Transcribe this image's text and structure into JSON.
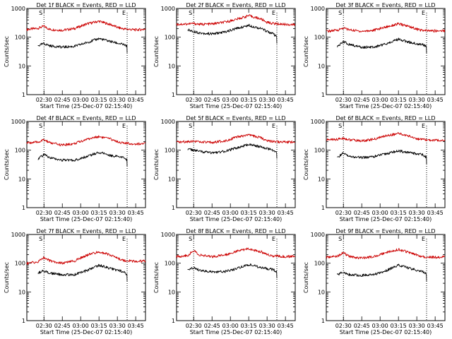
{
  "colors": {
    "events": "#000000",
    "lld": "#cc0000",
    "axis": "#000000",
    "background": "#ffffff"
  },
  "chart_data": [
    {
      "type": "line",
      "title": "Det 1f BLACK = Events, RED = LLD",
      "xlabel": "Start Time (25-Dec-07 02:15:40)",
      "ylabel": "Counts/sec",
      "yscale": "log",
      "ylim": [
        1,
        1000
      ],
      "y_ticks": [
        "1",
        "10",
        "100",
        "1000"
      ],
      "x_ticks": [
        "02:30",
        "02:45",
        "03:00",
        "03:15",
        "03:30",
        "03:45"
      ],
      "xlim": [
        "02:16",
        "03:53"
      ],
      "markers": [
        {
          "label": "S",
          "time": "02:30"
        },
        {
          "label": "E",
          "time": "03:38"
        }
      ],
      "series": [
        {
          "color": "#cc0000",
          "x": [
            "02:16",
            "02:25",
            "02:30",
            "02:35",
            "02:45",
            "02:55",
            "03:05",
            "03:15",
            "03:25",
            "03:30",
            "03:35",
            "03:45",
            "03:53"
          ],
          "y": [
            185,
            205,
            240,
            185,
            175,
            200,
            290,
            360,
            270,
            220,
            195,
            180,
            190
          ]
        },
        {
          "color": "#000000",
          "x": [
            "02:25",
            "02:30",
            "02:35",
            "02:45",
            "02:55",
            "03:05",
            "03:15",
            "03:25",
            "03:35",
            "03:38"
          ],
          "y": [
            50,
            60,
            50,
            45,
            48,
            65,
            90,
            70,
            55,
            48
          ]
        }
      ]
    },
    {
      "type": "line",
      "title": "Det 2f BLACK = Events, RED = LLD",
      "xlabel": "Start Time (25-Dec-07 02:15:40)",
      "ylabel": "Counts/sec",
      "yscale": "log",
      "ylim": [
        1,
        1000
      ],
      "y_ticks": [
        "1",
        "10",
        "100",
        "1000"
      ],
      "x_ticks": [
        "02:30",
        "02:45",
        "03:00",
        "03:15",
        "03:30",
        "03:45"
      ],
      "xlim": [
        "02:16",
        "03:53"
      ],
      "markers": [
        {
          "label": "S",
          "time": "02:30"
        },
        {
          "label": "E",
          "time": "03:38"
        }
      ],
      "series": [
        {
          "color": "#cc0000",
          "x": [
            "02:16",
            "02:25",
            "02:30",
            "02:35",
            "02:45",
            "02:55",
            "03:05",
            "03:15",
            "03:25",
            "03:30",
            "03:35",
            "03:45",
            "03:53"
          ],
          "y": [
            280,
            290,
            300,
            280,
            290,
            330,
            420,
            560,
            430,
            330,
            300,
            280,
            270
          ]
        },
        {
          "color": "#000000",
          "x": [
            "02:25",
            "02:30",
            "02:35",
            "02:45",
            "02:55",
            "03:05",
            "03:15",
            "03:25",
            "03:35",
            "03:38"
          ],
          "y": [
            180,
            160,
            140,
            130,
            150,
            200,
            260,
            200,
            130,
            100
          ]
        }
      ]
    },
    {
      "type": "line",
      "title": "Det 3f BLACK = Events, RED = LLD",
      "xlabel": "Start Time (25-Dec-07 02:15:40)",
      "ylabel": "Counts/sec",
      "yscale": "log",
      "ylim": [
        1,
        1000
      ],
      "y_ticks": [
        "1",
        "10",
        "100",
        "1000"
      ],
      "x_ticks": [
        "02:30",
        "02:45",
        "03:00",
        "03:15",
        "03:30",
        "03:45"
      ],
      "xlim": [
        "02:16",
        "03:53"
      ],
      "markers": [
        {
          "label": "S",
          "time": "02:30"
        },
        {
          "label": "E",
          "time": "03:38"
        }
      ],
      "series": [
        {
          "color": "#cc0000",
          "x": [
            "02:16",
            "02:25",
            "02:30",
            "02:35",
            "02:45",
            "02:55",
            "03:05",
            "03:15",
            "03:25",
            "03:30",
            "03:35",
            "03:45",
            "03:53"
          ],
          "y": [
            160,
            175,
            210,
            180,
            160,
            175,
            230,
            290,
            230,
            190,
            170,
            165,
            170
          ]
        },
        {
          "color": "#000000",
          "x": [
            "02:25",
            "02:30",
            "02:35",
            "02:45",
            "02:55",
            "03:05",
            "03:15",
            "03:25",
            "03:35",
            "03:38"
          ],
          "y": [
            45,
            70,
            55,
            45,
            45,
            60,
            85,
            65,
            55,
            45
          ]
        }
      ]
    },
    {
      "type": "line",
      "title": "Det 4f BLACK = Events, RED = LLD",
      "xlabel": "Start Time (25-Dec-07 02:15:40)",
      "ylabel": "Counts/sec",
      "yscale": "log",
      "ylim": [
        1,
        1000
      ],
      "y_ticks": [
        "1",
        "10",
        "100",
        "1000"
      ],
      "x_ticks": [
        "02:30",
        "02:45",
        "03:00",
        "03:15",
        "03:30",
        "03:45"
      ],
      "xlim": [
        "02:16",
        "03:53"
      ],
      "markers": [
        {
          "label": "S",
          "time": "02:30"
        },
        {
          "label": "E",
          "time": "03:38"
        }
      ],
      "series": [
        {
          "color": "#cc0000",
          "x": [
            "02:16",
            "02:25",
            "02:30",
            "02:35",
            "02:45",
            "02:55",
            "03:05",
            "03:15",
            "03:25",
            "03:30",
            "03:35",
            "03:45",
            "03:53"
          ],
          "y": [
            180,
            190,
            230,
            180,
            150,
            170,
            240,
            300,
            240,
            200,
            175,
            165,
            170
          ]
        },
        {
          "color": "#000000",
          "x": [
            "02:25",
            "02:30",
            "02:35",
            "02:45",
            "02:55",
            "03:05",
            "03:15",
            "03:25",
            "03:35",
            "03:38"
          ],
          "y": [
            50,
            70,
            55,
            45,
            45,
            60,
            85,
            65,
            55,
            45
          ]
        }
      ]
    },
    {
      "type": "line",
      "title": "Det 5f BLACK = Events, RED = LLD",
      "xlabel": "Start Time (25-Dec-07 02:15:40)",
      "ylabel": "Counts/sec",
      "yscale": "log",
      "ylim": [
        1,
        1000
      ],
      "y_ticks": [
        "1",
        "10",
        "100",
        "1000"
      ],
      "x_ticks": [
        "02:30",
        "02:45",
        "03:00",
        "03:15",
        "03:30",
        "03:45"
      ],
      "xlim": [
        "02:16",
        "03:53"
      ],
      "markers": [
        {
          "label": "S",
          "time": "02:30"
        },
        {
          "label": "E",
          "time": "03:38"
        }
      ],
      "series": [
        {
          "color": "#cc0000",
          "x": [
            "02:16",
            "02:25",
            "02:30",
            "02:35",
            "02:45",
            "02:55",
            "03:05",
            "03:15",
            "03:25",
            "03:30",
            "03:35",
            "03:45",
            "03:53"
          ],
          "y": [
            190,
            200,
            210,
            190,
            185,
            210,
            280,
            340,
            270,
            220,
            200,
            190,
            195
          ]
        },
        {
          "color": "#000000",
          "x": [
            "02:25",
            "02:30",
            "02:35",
            "02:45",
            "02:55",
            "03:05",
            "03:15",
            "03:25",
            "03:35",
            "03:38"
          ],
          "y": [
            110,
            100,
            90,
            80,
            90,
            120,
            160,
            130,
            100,
            85
          ]
        }
      ]
    },
    {
      "type": "line",
      "title": "Det 6f BLACK = Events, RED = LLD",
      "xlabel": "Start Time (25-Dec-07 02:15:40)",
      "ylabel": "Counts/sec",
      "yscale": "log",
      "ylim": [
        1,
        1000
      ],
      "y_ticks": [
        "1",
        "10",
        "100",
        "1000"
      ],
      "x_ticks": [
        "02:30",
        "02:45",
        "03:00",
        "03:15",
        "03:30",
        "03:45"
      ],
      "xlim": [
        "02:16",
        "03:53"
      ],
      "markers": [
        {
          "label": "S",
          "time": "02:30"
        },
        {
          "label": "E",
          "time": "03:38"
        }
      ],
      "series": [
        {
          "color": "#cc0000",
          "x": [
            "02:16",
            "02:25",
            "02:30",
            "02:35",
            "02:45",
            "02:55",
            "03:05",
            "03:15",
            "03:25",
            "03:30",
            "03:35",
            "03:45",
            "03:53"
          ],
          "y": [
            230,
            240,
            260,
            230,
            210,
            240,
            320,
            380,
            300,
            250,
            230,
            220,
            225
          ]
        },
        {
          "color": "#000000",
          "x": [
            "02:25",
            "02:30",
            "02:35",
            "02:45",
            "02:55",
            "03:05",
            "03:15",
            "03:25",
            "03:35",
            "03:38"
          ],
          "y": [
            55,
            80,
            60,
            55,
            60,
            75,
            95,
            80,
            70,
            55
          ]
        }
      ]
    },
    {
      "type": "line",
      "title": "Det 7f BLACK = Events, RED = LLD",
      "xlabel": "Start Time (25-Dec-07 02:15:40)",
      "ylabel": "Counts/sec",
      "yscale": "log",
      "ylim": [
        1,
        1000
      ],
      "y_ticks": [
        "1",
        "10",
        "100",
        "1000"
      ],
      "x_ticks": [
        "02:30",
        "02:45",
        "03:00",
        "03:15",
        "03:30",
        "03:45"
      ],
      "xlim": [
        "02:16",
        "03:53"
      ],
      "markers": [
        {
          "label": "S",
          "time": "02:30"
        },
        {
          "label": "E",
          "time": "03:38"
        }
      ],
      "series": [
        {
          "color": "#cc0000",
          "x": [
            "02:16",
            "02:25",
            "02:30",
            "02:35",
            "02:45",
            "02:55",
            "03:05",
            "03:15",
            "03:25",
            "03:30",
            "03:35",
            "03:45",
            "03:53"
          ],
          "y": [
            100,
            110,
            160,
            120,
            100,
            120,
            190,
            250,
            190,
            150,
            125,
            115,
            120
          ]
        },
        {
          "color": "#000000",
          "x": [
            "02:25",
            "02:30",
            "02:35",
            "02:45",
            "02:55",
            "03:05",
            "03:15",
            "03:25",
            "03:35",
            "03:38"
          ],
          "y": [
            45,
            55,
            45,
            40,
            40,
            55,
            85,
            65,
            50,
            40
          ]
        }
      ]
    },
    {
      "type": "line",
      "title": "Det 8f BLACK = Events, RED = LLD",
      "xlabel": "Start Time (25-Dec-07 02:15:40)",
      "ylabel": "Counts/sec",
      "yscale": "log",
      "ylim": [
        1,
        1000
      ],
      "y_ticks": [
        "1",
        "10",
        "100",
        "1000"
      ],
      "x_ticks": [
        "02:30",
        "02:45",
        "03:00",
        "03:15",
        "03:30",
        "03:45"
      ],
      "xlim": [
        "02:16",
        "03:53"
      ],
      "markers": [
        {
          "label": "S",
          "time": "02:30"
        },
        {
          "label": "E",
          "time": "03:38"
        }
      ],
      "series": [
        {
          "color": "#cc0000",
          "x": [
            "02:16",
            "02:25",
            "02:30",
            "02:35",
            "02:45",
            "02:55",
            "03:05",
            "03:15",
            "03:25",
            "03:30",
            "03:35",
            "03:45",
            "03:53"
          ],
          "y": [
            170,
            185,
            280,
            190,
            170,
            190,
            260,
            320,
            250,
            200,
            180,
            170,
            175
          ]
        },
        {
          "color": "#000000",
          "x": [
            "02:25",
            "02:30",
            "02:35",
            "02:45",
            "02:55",
            "03:05",
            "03:15",
            "03:25",
            "03:35",
            "03:38"
          ],
          "y": [
            55,
            70,
            55,
            50,
            50,
            65,
            90,
            70,
            60,
            50
          ]
        }
      ]
    },
    {
      "type": "line",
      "title": "Det 9f BLACK = Events, RED = LLD",
      "xlabel": "Start Time (25-Dec-07 02:15:40)",
      "ylabel": "Counts/sec",
      "yscale": "log",
      "ylim": [
        1,
        1000
      ],
      "y_ticks": [
        "1",
        "10",
        "100",
        "1000"
      ],
      "x_ticks": [
        "02:30",
        "02:45",
        "03:00",
        "03:15",
        "03:30",
        "03:45"
      ],
      "xlim": [
        "02:16",
        "03:53"
      ],
      "markers": [
        {
          "label": "S",
          "time": "02:30"
        },
        {
          "label": "E",
          "time": "03:38"
        }
      ],
      "series": [
        {
          "color": "#cc0000",
          "x": [
            "02:16",
            "02:25",
            "02:30",
            "02:35",
            "02:45",
            "02:55",
            "03:05",
            "03:15",
            "03:25",
            "03:30",
            "03:35",
            "03:45",
            "03:53"
          ],
          "y": [
            160,
            175,
            230,
            170,
            150,
            170,
            240,
            300,
            230,
            190,
            170,
            160,
            165
          ]
        },
        {
          "color": "#000000",
          "x": [
            "02:25",
            "02:30",
            "02:35",
            "02:45",
            "02:55",
            "03:05",
            "03:15",
            "03:25",
            "03:35",
            "03:38"
          ],
          "y": [
            40,
            50,
            40,
            38,
            40,
            55,
            85,
            65,
            50,
            40
          ]
        }
      ]
    }
  ]
}
